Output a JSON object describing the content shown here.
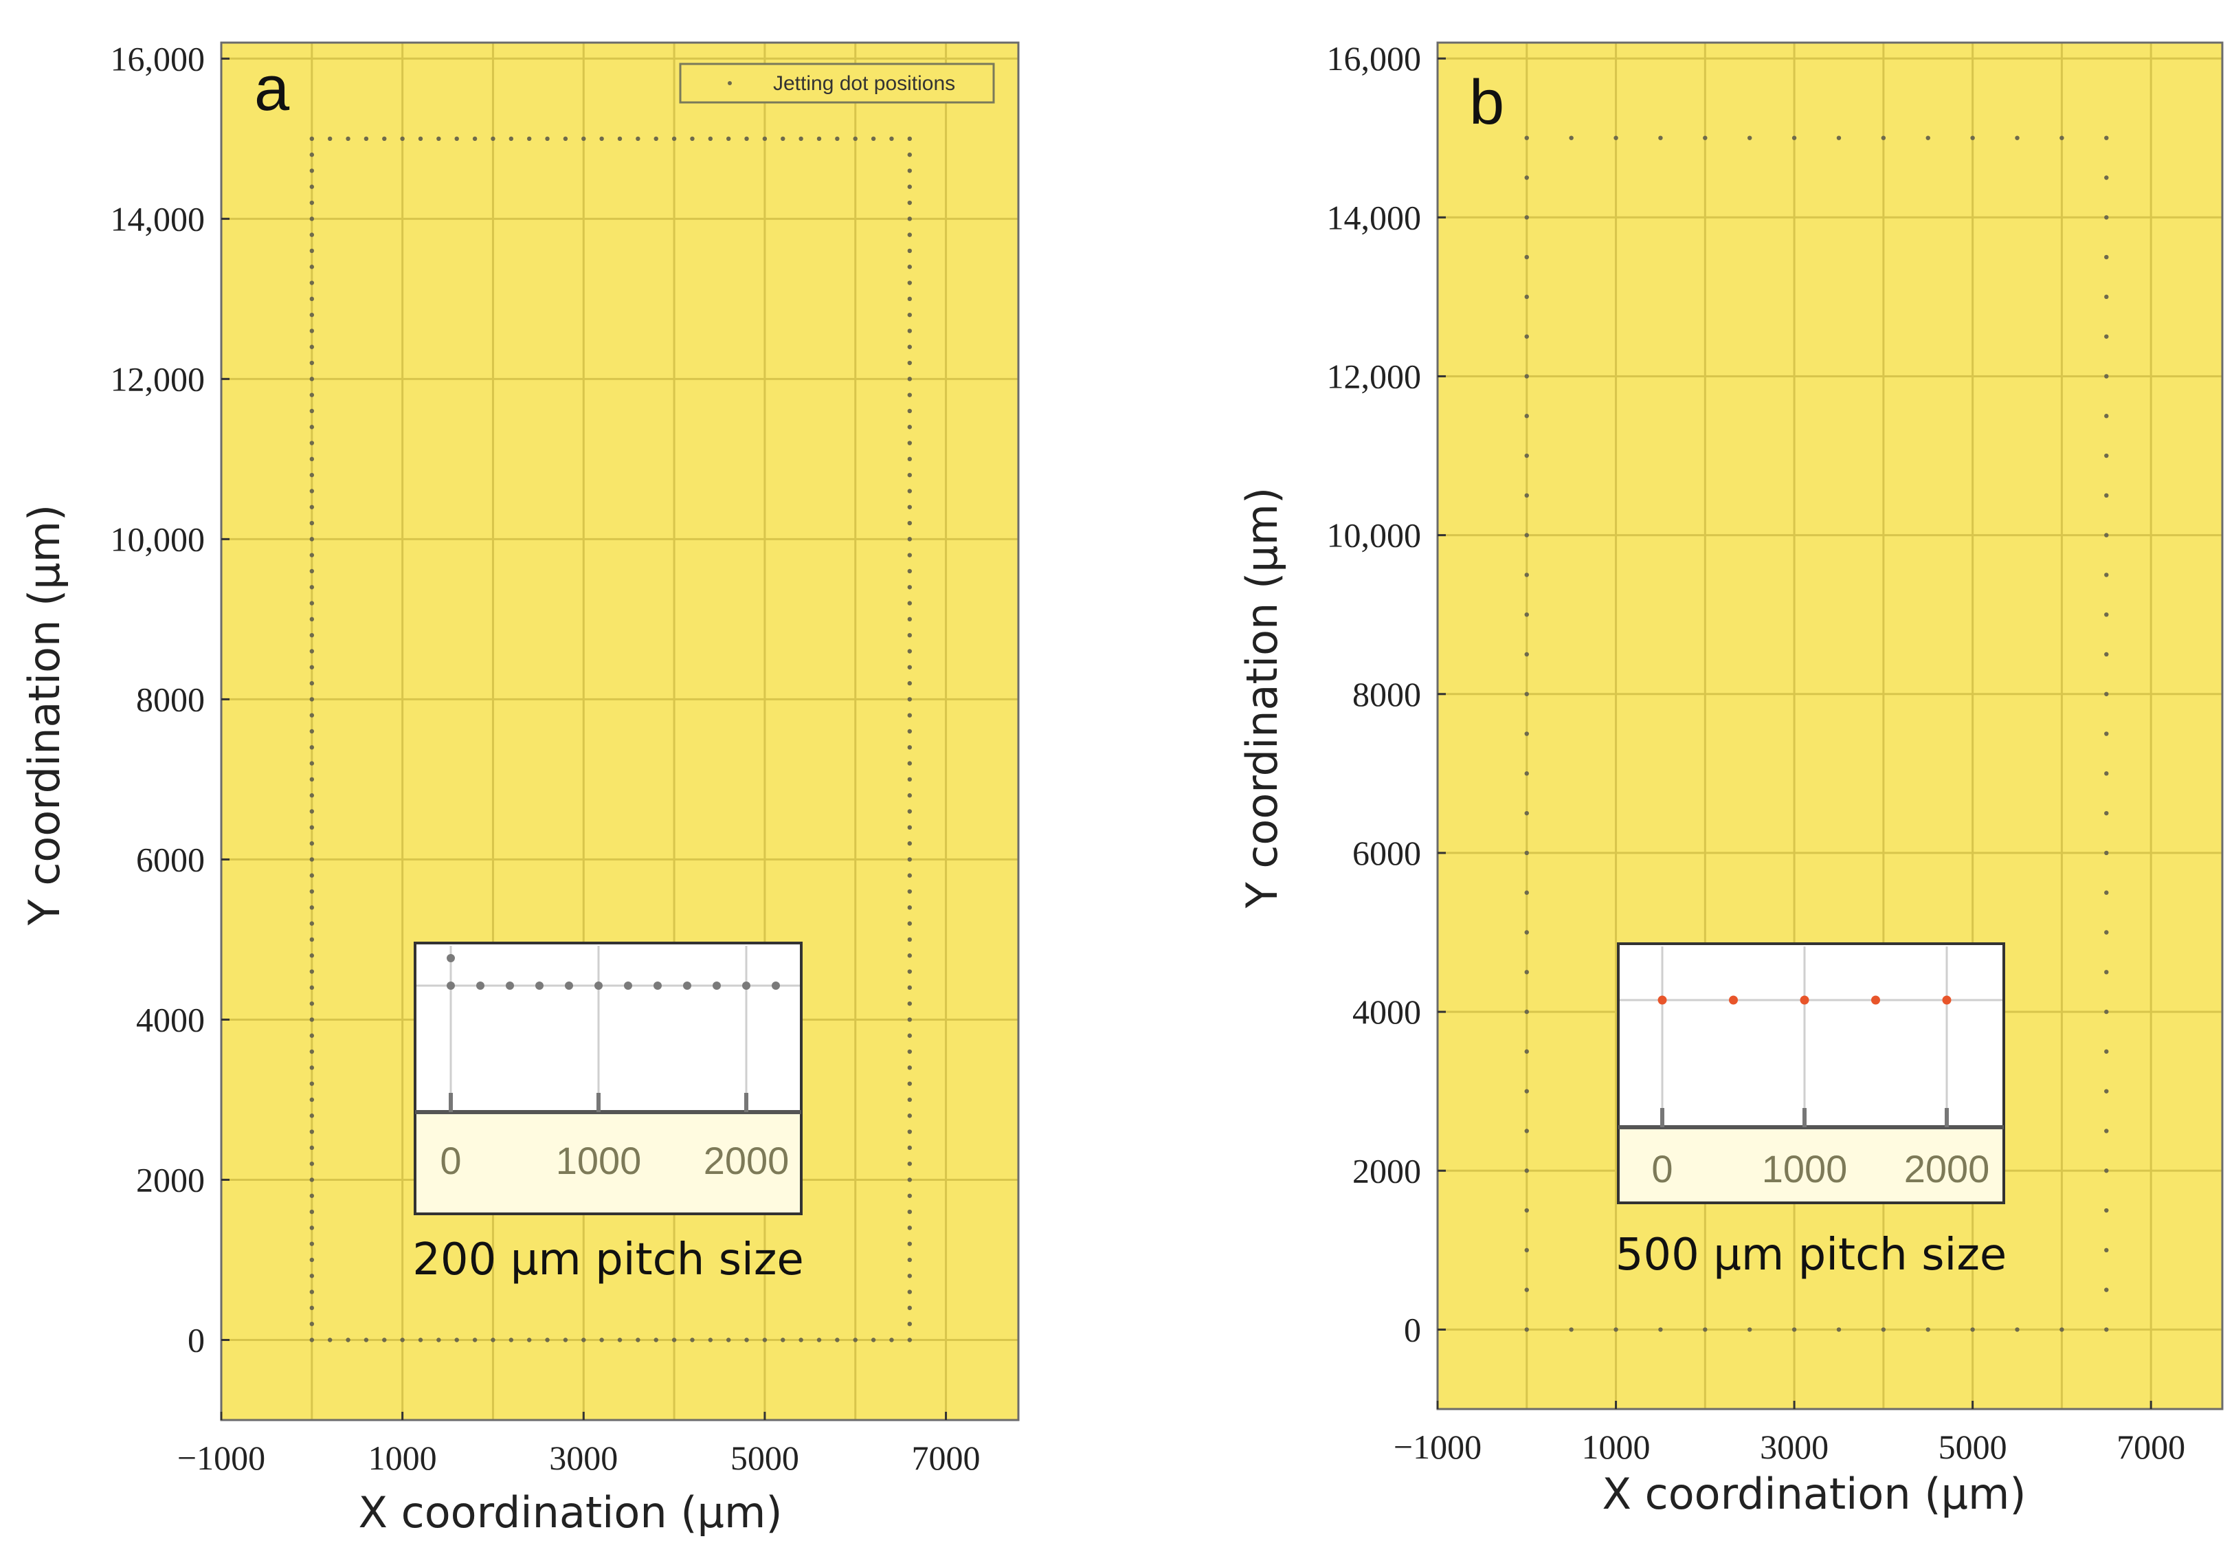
{
  "chart_data": [
    {
      "panel": "a",
      "type": "scatter",
      "xlabel": "X coordination (µm)",
      "ylabel": "Y coordination (µm)",
      "xlim": [
        -1000,
        7800
      ],
      "ylim": [
        -1000,
        16200
      ],
      "xticks": [
        -1000,
        1000,
        3000,
        5000,
        7000
      ],
      "xtick_labels": [
        "−1000",
        "1000",
        "3000",
        "5000",
        "7000"
      ],
      "yticks": [
        0,
        2000,
        4000,
        6000,
        8000,
        10000,
        12000,
        14000,
        16000
      ],
      "ytick_labels": [
        "0",
        "2000",
        "4000",
        "6000",
        "8000",
        "10,000",
        "12,000",
        "14,000",
        "16,000"
      ],
      "grid": true,
      "legend": {
        "label": "Jetting dot positions",
        "placement": "top-right"
      },
      "series": [
        {
          "name": "Jetting dot positions",
          "pitch": 200,
          "rectangle": {
            "x_min": 0,
            "x_max": 6600,
            "y_min": 0,
            "y_max": 15000
          }
        }
      ],
      "inset": {
        "xticks": [
          0,
          1000,
          2000
        ],
        "xtick_labels": [
          "0",
          "1000",
          "2000"
        ],
        "pitch": 200,
        "caption": "200 µm pitch size",
        "dot_color": "#7a7a7a"
      }
    },
    {
      "panel": "b",
      "type": "scatter",
      "xlabel": "X coordination (µm)",
      "ylabel": "Y coordination (µm)",
      "xlim": [
        -1000,
        7800
      ],
      "ylim": [
        -1000,
        16200
      ],
      "xticks": [
        -1000,
        1000,
        3000,
        5000,
        7000
      ],
      "xtick_labels": [
        "−1000",
        "1000",
        "3000",
        "5000",
        "7000"
      ],
      "yticks": [
        0,
        2000,
        4000,
        6000,
        8000,
        10000,
        12000,
        14000,
        16000
      ],
      "ytick_labels": [
        "0",
        "2000",
        "4000",
        "6000",
        "8000",
        "10,000",
        "12,000",
        "14,000",
        "16,000"
      ],
      "grid": true,
      "series": [
        {
          "name": "Jetting dot positions",
          "pitch": 500,
          "rectangle": {
            "x_min": 0,
            "x_max": 6500,
            "y_min": 0,
            "y_max": 15000
          }
        }
      ],
      "inset": {
        "xticks": [
          0,
          1000,
          2000
        ],
        "xtick_labels": [
          "0",
          "1000",
          "2000"
        ],
        "pitch": 500,
        "caption": "500 µm pitch size",
        "dot_color": "#e8552a"
      }
    }
  ],
  "colors": {
    "plot_background": "#f8e66a",
    "dot": "#6e6a4c"
  }
}
